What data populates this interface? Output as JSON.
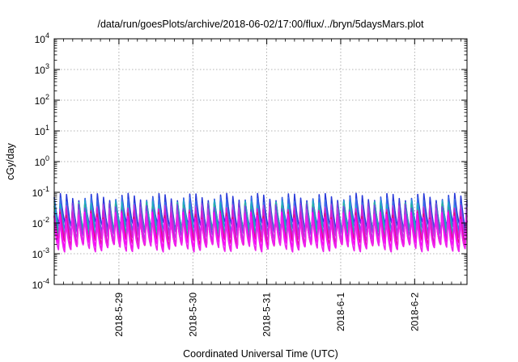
{
  "chart_data": {
    "type": "line",
    "title": "/data/run/goesPlots/archive/2018-06-02/17:00/flux/../bryn/5daysMars.plot",
    "xlabel": "Coordinated Universal Time (UTC)",
    "ylabel": "cGy/day",
    "yscale": "log",
    "ylim": [
      0.0001,
      10000
    ],
    "xlim": [
      "2018-05-28 03:00",
      "2018-06-02 17:00"
    ],
    "x_ticks": [
      "2018-5-29",
      "2018-5-30",
      "2018-5-31",
      "2018-6-1",
      "2018-6-2"
    ],
    "y_ticks": [
      {
        "base": "10",
        "exp": "4"
      },
      {
        "base": "10",
        "exp": "3"
      },
      {
        "base": "10",
        "exp": "2"
      },
      {
        "base": "10",
        "exp": "1"
      },
      {
        "base": "10",
        "exp": "0"
      },
      {
        "base": "10",
        "exp": "-1"
      },
      {
        "base": "10",
        "exp": "-2"
      },
      {
        "base": "10",
        "exp": "-3"
      },
      {
        "base": "10",
        "exp": "-4"
      }
    ],
    "grid": true,
    "legend": "none",
    "period_hours": 2,
    "series": [
      {
        "color": "#2a3ad9",
        "peak": 0.07,
        "trough": 0.008
      },
      {
        "color": "#3a6fe8",
        "peak": 0.055,
        "trough": 0.006
      },
      {
        "color": "#20a8c8",
        "peak": 0.045,
        "trough": 0.005
      },
      {
        "color": "#2ab0a0",
        "peak": 0.04,
        "trough": 0.0045
      },
      {
        "color": "#7a3fe0",
        "peak": 0.035,
        "trough": 0.004
      },
      {
        "color": "#b040e0",
        "peak": 0.03,
        "trough": 0.0032
      },
      {
        "color": "#d020d0",
        "peak": 0.025,
        "trough": 0.0026
      },
      {
        "color": "#e01080",
        "peak": 0.02,
        "trough": 0.0022
      },
      {
        "color": "#ff00ff",
        "peak": 0.018,
        "trough": 0.0018
      },
      {
        "color": "#ee22ee",
        "peak": 0.015,
        "trough": 0.0015
      }
    ]
  }
}
